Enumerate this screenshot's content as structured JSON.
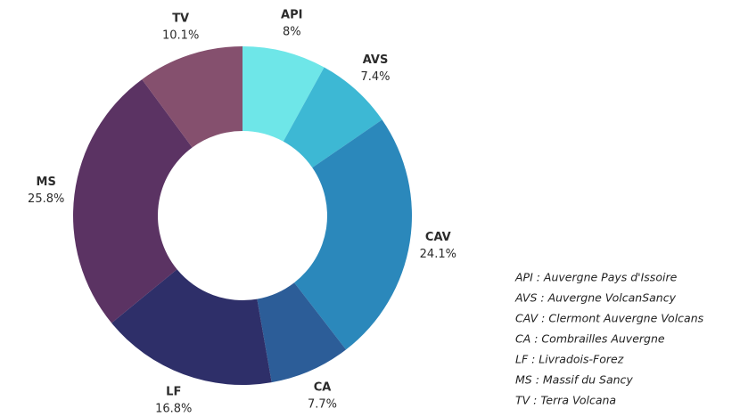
{
  "chart_data": {
    "type": "donut",
    "categories": [
      "API",
      "AVS",
      "CAV",
      "CA",
      "LF",
      "MS",
      "TV"
    ],
    "values": [
      8,
      7.4,
      24.1,
      7.7,
      16.8,
      25.8,
      10.1
    ],
    "value_labels": [
      "8%",
      "7.4%",
      "24.1%",
      "7.7%",
      "16.8%",
      "25.8%",
      "10.1%"
    ],
    "colors": [
      "#6ee6e8",
      "#3db8d4",
      "#2b88bb",
      "#2c5d98",
      "#2e2f69",
      "#5b3363",
      "#85506e"
    ],
    "notes": [
      "API : Auvergne Pays d'Issoire",
      "AVS : Auvergne VolcanSancy",
      "CAV : Clermont Auvergne Volcans",
      "CA : Combrailles Auvergne",
      "LF : Livradois-Forez",
      "MS : Massif du Sancy",
      "TV : Terra Volcana"
    ]
  }
}
